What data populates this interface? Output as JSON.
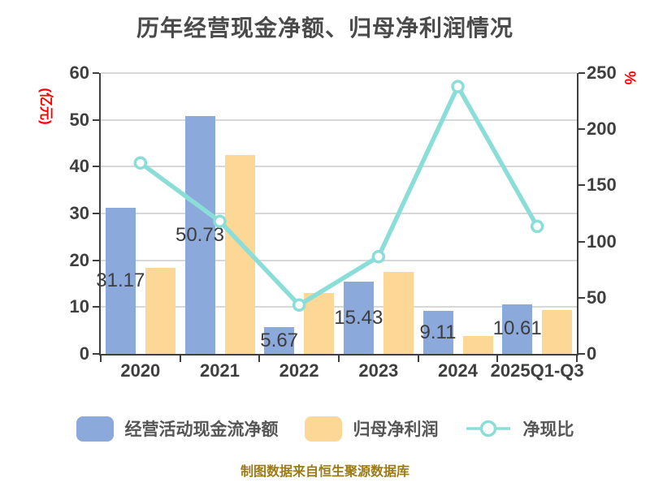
{
  "chart_data": {
    "type": "combo-bar-line",
    "title": "历年经营现金净额、归母净利润情况",
    "categories": [
      "2020",
      "2021",
      "2022",
      "2023",
      "2024",
      "2025Q1-Q3"
    ],
    "series": [
      {
        "name": "经营活动现金流净额",
        "type": "bar",
        "axis": "left",
        "color": "#8CA9DB",
        "values": [
          31.17,
          50.73,
          5.67,
          15.43,
          9.11,
          10.61
        ],
        "data_labels": [
          "31.17",
          "50.73",
          "5.67",
          "15.43",
          "9.11",
          "10.61"
        ]
      },
      {
        "name": "归母净利润",
        "type": "bar",
        "axis": "left",
        "color": "#FCD795",
        "values": [
          18.3,
          42.5,
          13.0,
          17.5,
          3.8,
          9.35
        ]
      },
      {
        "name": "净现比",
        "type": "line",
        "axis": "right",
        "color": "#8BDED8",
        "marker": "open-circle",
        "values": [
          170,
          118,
          43.5,
          86.5,
          238,
          113.5
        ]
      }
    ],
    "left_axis": {
      "label": "(亿元)",
      "label_color": "#FF0000",
      "min": 0,
      "max": 60,
      "ticks": [
        0,
        10,
        20,
        30,
        40,
        50,
        60
      ]
    },
    "right_axis": {
      "label": "%",
      "label_color": "#FF0000",
      "min": 0,
      "max": 250,
      "ticks": [
        0,
        50,
        100,
        150,
        200,
        250
      ]
    },
    "grid": true,
    "legend_position": "bottom",
    "footer": "制图数据来自恒生聚源数据库",
    "footer_color": "#9C7B16",
    "text_color": "#3F3F3F",
    "grid_color": "#D8D8D8"
  }
}
